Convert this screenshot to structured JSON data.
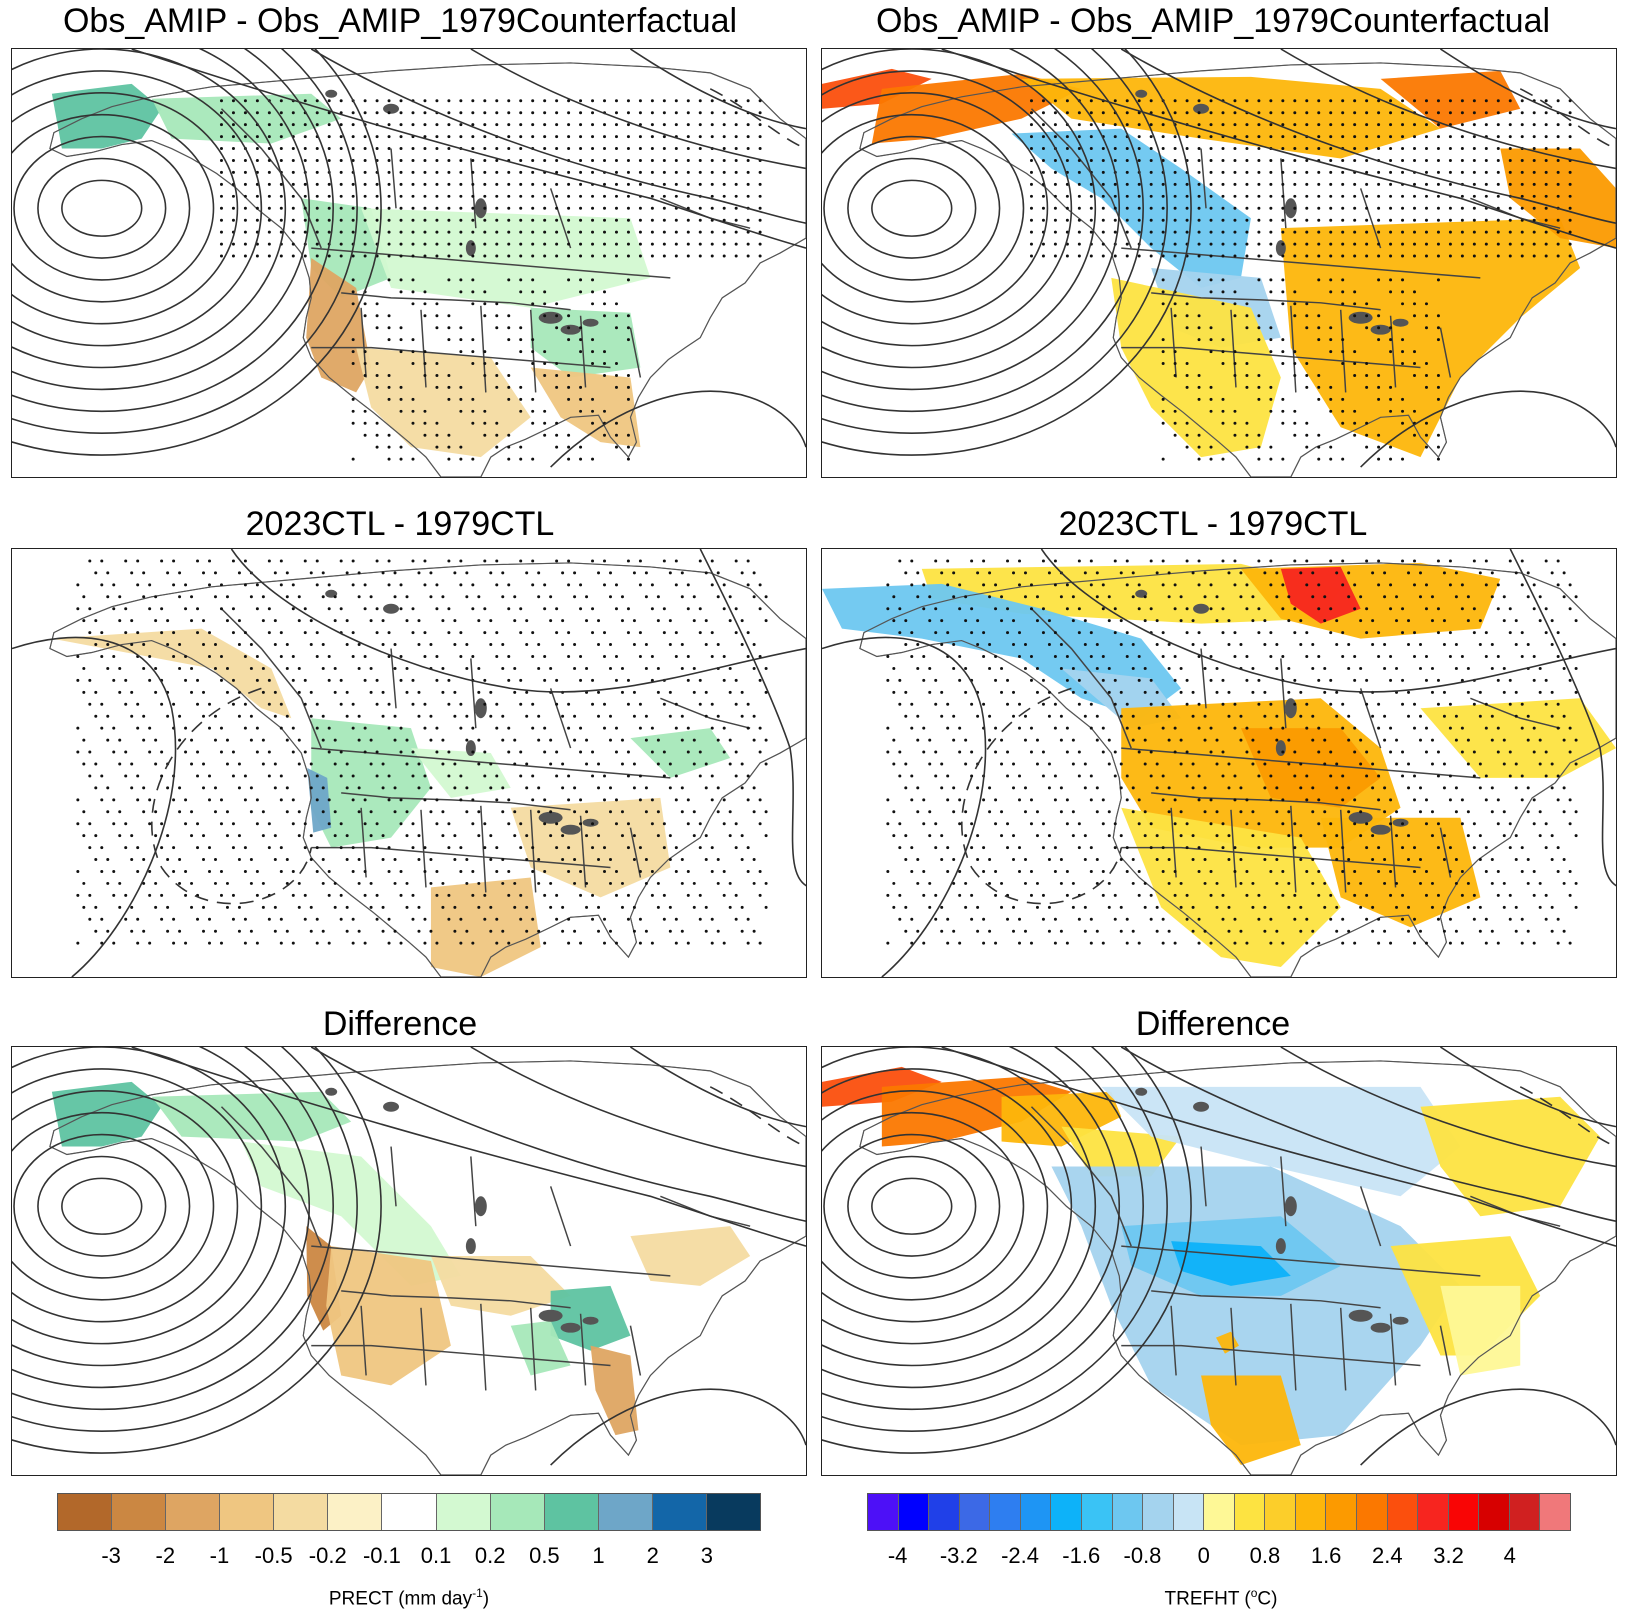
{
  "panels": [
    {
      "id": "p1",
      "title": "Obs_AMIP - Obs_AMIP_1979Counterfactual",
      "var": "precip",
      "low_contours": 11,
      "stipple": "north",
      "style": "obs"
    },
    {
      "id": "p2",
      "title": "Obs_AMIP - Obs_AMIP_1979Counterfactual",
      "var": "temp",
      "low_contours": 11,
      "stipple": "north",
      "style": "obs"
    },
    {
      "id": "p3",
      "title": "2023CTL - 1979CTL",
      "var": "precip",
      "low_contours": 2,
      "stipple": "broad",
      "style": "ctl"
    },
    {
      "id": "p4",
      "title": "2023CTL - 1979CTL",
      "var": "temp",
      "low_contours": 2,
      "stipple": "broad",
      "style": "ctl"
    },
    {
      "id": "p5",
      "title": "Difference",
      "var": "precip",
      "low_contours": 11,
      "stipple": "none",
      "style": "diff"
    },
    {
      "id": "p6",
      "title": "Difference",
      "var": "temp",
      "low_contours": 11,
      "stipple": "none",
      "style": "diff"
    }
  ],
  "precip_colorbar": {
    "label_main": "PRECT (mm day",
    "label_sup": "-1",
    "label_end": ")",
    "colors": [
      "#b2682a",
      "#cb8742",
      "#dea562",
      "#efc681",
      "#f4dba1",
      "#fcf1c6",
      "#ffffff",
      "#d3f9d1",
      "#a6e8b9",
      "#5ec3a1",
      "#6ea6c8",
      "#1366a8",
      "#083a5e"
    ],
    "ticks": [
      "-3",
      "-2",
      "-1",
      "-0.5",
      "-0.2",
      "-0.1",
      "0.1",
      "0.2",
      "0.5",
      "1",
      "2",
      "3"
    ]
  },
  "temp_colorbar": {
    "label_main": "TREFHT (",
    "label_sup": "o",
    "label_end": "C)",
    "colors": [
      "#4d10f7",
      "#0000ff",
      "#2040e8",
      "#3c69e6",
      "#2e7ef0",
      "#1e95f4",
      "#0db2f9",
      "#3ac3f5",
      "#6dc7f0",
      "#a4d3ee",
      "#c8e4f5",
      "#fef896",
      "#fde341",
      "#fcce2a",
      "#fdb60b",
      "#fc9a00",
      "#fb7800",
      "#fb4f0d",
      "#f7251f",
      "#f90505",
      "#d70000",
      "#d02020",
      "#f0787a"
    ],
    "ticks": [
      "-4",
      "-3.2",
      "-2.4",
      "-1.6",
      "-0.8",
      "0",
      "0.8",
      "1.6",
      "2.4",
      "3.2",
      "4"
    ]
  }
}
